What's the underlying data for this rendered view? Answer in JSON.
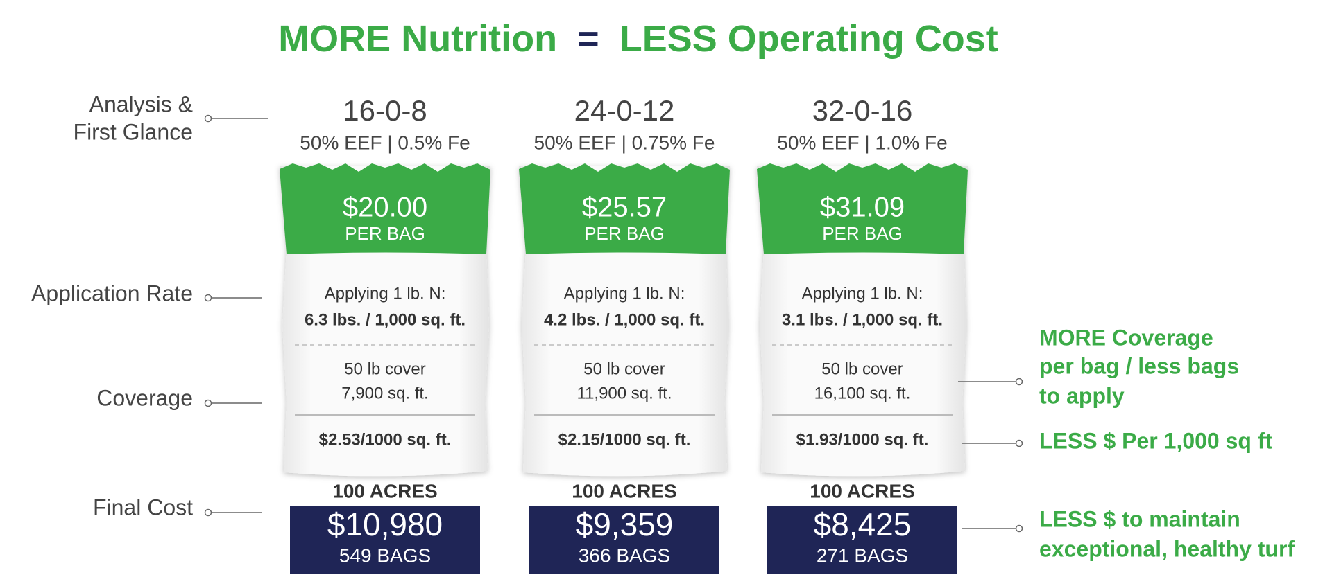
{
  "title": {
    "left": "MORE Nutrition",
    "equals": "=",
    "right": "LESS Operating Cost"
  },
  "left_labels": [
    [
      "Analysis &",
      "First Glance"
    ],
    [
      "Application Rate"
    ],
    [
      "Coverage"
    ],
    [
      "Final Cost"
    ]
  ],
  "products": [
    {
      "analysis": "16-0-8",
      "details": "50% EEF | 0.5% Fe",
      "price": "$20.00",
      "price_unit": "PER BAG",
      "rate_title": "Applying 1 lb. N:",
      "rate": "6.3 lbs. / 1,000 sq. ft.",
      "coverage_title": "50 lb cover",
      "coverage": "7,900 sq. ft.",
      "cost_per_1000": "$2.53/1000 sq. ft.",
      "area": "100 ACRES",
      "final_cost": "$10,980",
      "bags": "549 BAGS"
    },
    {
      "analysis": "24-0-12",
      "details": "50% EEF | 0.75% Fe",
      "price": "$25.57",
      "price_unit": "PER BAG",
      "rate_title": "Applying 1 lb. N:",
      "rate": "4.2 lbs. / 1,000 sq. ft.",
      "coverage_title": "50 lb cover",
      "coverage": "11,900 sq. ft.",
      "cost_per_1000": "$2.15/1000 sq. ft.",
      "area": "100 ACRES",
      "final_cost": "$9,359",
      "bags": "366 BAGS"
    },
    {
      "analysis": "32-0-16",
      "details": "50% EEF | 1.0% Fe",
      "price": "$31.09",
      "price_unit": "PER BAG",
      "rate_title": "Applying 1 lb. N:",
      "rate": "3.1 lbs. / 1,000 sq. ft.",
      "coverage_title": "50 lb cover",
      "coverage": "16,100 sq. ft.",
      "cost_per_1000": "$1.93/1000 sq. ft.",
      "area": "100 ACRES",
      "final_cost": "$8,425",
      "bags": "271 BAGS"
    }
  ],
  "right_notes": [
    [
      "MORE Coverage",
      "per bag / less bags",
      "to apply"
    ],
    [
      "LESS $ Per 1,000 sq ft"
    ],
    [
      "LESS $ to maintain",
      "exceptional, healthy turf"
    ]
  ]
}
